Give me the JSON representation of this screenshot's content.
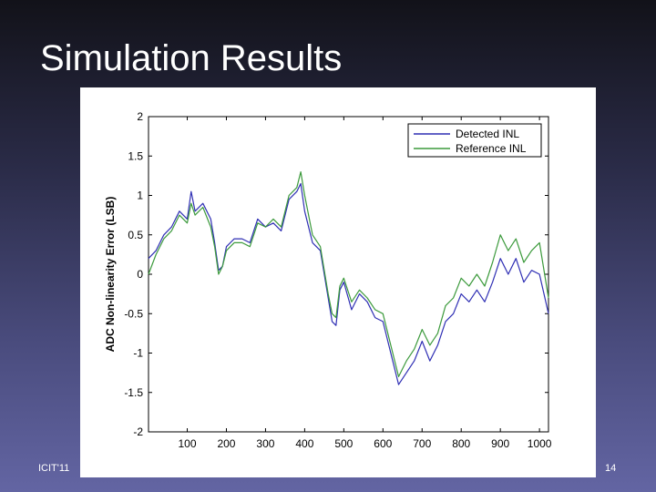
{
  "slide": {
    "title": "Simulation Results",
    "footer_left": "ICIT'11",
    "page_number": "14"
  },
  "chart_data": {
    "type": "line",
    "title": "",
    "xlabel": "",
    "ylabel": "ADC Non-linearity Error (LSB)",
    "xlim": [
      1,
      1023
    ],
    "ylim": [
      -2,
      2
    ],
    "xticks": [
      100,
      200,
      300,
      400,
      500,
      600,
      700,
      800,
      900,
      1000
    ],
    "yticks": [
      -2,
      -1.5,
      -1,
      -0.5,
      0,
      0.5,
      1,
      1.5,
      2
    ],
    "grid": false,
    "legend_position": "top-right",
    "series": [
      {
        "name": "Detected INL",
        "color": "#2f2fb4",
        "x": [
          1,
          20,
          40,
          60,
          80,
          100,
          110,
          120,
          140,
          160,
          170,
          180,
          190,
          200,
          220,
          240,
          260,
          280,
          300,
          320,
          340,
          360,
          380,
          390,
          400,
          420,
          440,
          450,
          460,
          470,
          480,
          490,
          500,
          520,
          540,
          560,
          580,
          600,
          620,
          630,
          640,
          660,
          680,
          700,
          720,
          740,
          760,
          780,
          800,
          820,
          840,
          860,
          880,
          900,
          920,
          940,
          960,
          980,
          1000,
          1023
        ],
        "y": [
          0.2,
          0.3,
          0.5,
          0.6,
          0.8,
          0.7,
          1.05,
          0.8,
          0.9,
          0.7,
          0.4,
          0.05,
          0.1,
          0.35,
          0.45,
          0.45,
          0.4,
          0.7,
          0.6,
          0.65,
          0.55,
          0.95,
          1.05,
          1.15,
          0.8,
          0.4,
          0.3,
          0.0,
          -0.3,
          -0.6,
          -0.65,
          -0.2,
          -0.1,
          -0.45,
          -0.25,
          -0.35,
          -0.55,
          -0.6,
          -1.0,
          -1.2,
          -1.4,
          -1.25,
          -1.1,
          -0.85,
          -1.1,
          -0.9,
          -0.6,
          -0.5,
          -0.25,
          -0.35,
          -0.2,
          -0.35,
          -0.1,
          0.2,
          0.0,
          0.2,
          -0.1,
          0.05,
          0.0,
          -0.5
        ]
      },
      {
        "name": "Reference INL",
        "color": "#3c9a3c",
        "x": [
          1,
          20,
          40,
          60,
          80,
          100,
          110,
          120,
          140,
          160,
          170,
          180,
          190,
          200,
          220,
          240,
          260,
          280,
          300,
          320,
          340,
          360,
          380,
          390,
          400,
          420,
          440,
          450,
          460,
          470,
          480,
          490,
          500,
          520,
          540,
          560,
          580,
          600,
          620,
          630,
          640,
          660,
          680,
          700,
          720,
          740,
          760,
          780,
          800,
          820,
          840,
          860,
          880,
          900,
          920,
          940,
          960,
          980,
          1000,
          1023
        ],
        "y": [
          0.0,
          0.25,
          0.45,
          0.55,
          0.75,
          0.65,
          0.9,
          0.75,
          0.85,
          0.6,
          0.35,
          0.0,
          0.1,
          0.3,
          0.4,
          0.4,
          0.35,
          0.65,
          0.6,
          0.7,
          0.6,
          1.0,
          1.1,
          1.3,
          1.0,
          0.5,
          0.35,
          0.05,
          -0.25,
          -0.5,
          -0.55,
          -0.15,
          -0.05,
          -0.35,
          -0.2,
          -0.3,
          -0.45,
          -0.5,
          -0.9,
          -1.1,
          -1.3,
          -1.1,
          -0.95,
          -0.7,
          -0.9,
          -0.75,
          -0.4,
          -0.3,
          -0.05,
          -0.15,
          0.0,
          -0.15,
          0.15,
          0.5,
          0.3,
          0.45,
          0.15,
          0.3,
          0.4,
          -0.3
        ]
      }
    ]
  }
}
